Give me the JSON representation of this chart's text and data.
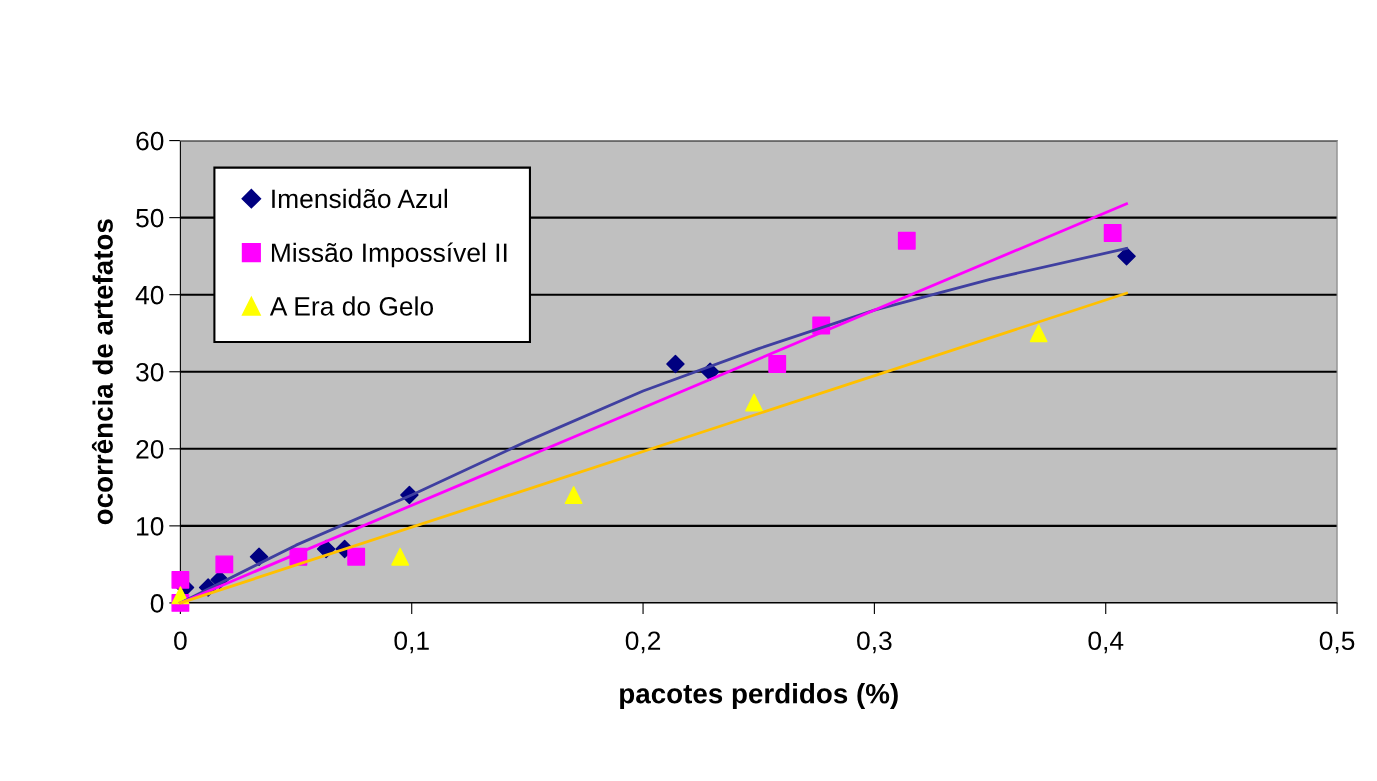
{
  "chart_data": {
    "type": "scatter",
    "xlabel": "pacotes perdidos (%)",
    "ylabel": "ocorrência de artefatos",
    "xlim": [
      0,
      0.5
    ],
    "xticks": [
      {
        "value": 0,
        "label": "0"
      },
      {
        "value": 0.1,
        "label": "0,1"
      },
      {
        "value": 0.2,
        "label": "0,2"
      },
      {
        "value": 0.3,
        "label": "0,3"
      },
      {
        "value": 0.4,
        "label": "0,4"
      },
      {
        "value": 0.5,
        "label": "0,5"
      }
    ],
    "ylim": [
      0,
      60
    ],
    "yticks": [
      0,
      10,
      20,
      30,
      40,
      50,
      60
    ],
    "grid": "y",
    "legend": "top left",
    "series": [
      {
        "name": "Imensidão Azul",
        "color": "#000080",
        "marker": "diamond",
        "x": [
          0.002,
          0.012,
          0.017,
          0.034,
          0.063,
          0.071,
          0.099,
          0.214,
          0.229,
          0.409
        ],
        "values": [
          2,
          2,
          3,
          6,
          7,
          7,
          14,
          31,
          30,
          45
        ]
      },
      {
        "name": "Missão Impossível II",
        "color": "#ff00ff",
        "marker": "square",
        "x": [
          0,
          0,
          0.019,
          0.051,
          0.076,
          0.258,
          0.277,
          0.314,
          0.403
        ],
        "values": [
          3,
          0,
          5,
          6,
          6,
          31,
          36,
          47,
          48
        ]
      },
      {
        "name": "A Era do Gelo",
        "color": "#ffff00",
        "marker": "triangle",
        "x": [
          0,
          0.095,
          0.17,
          0.248,
          0.371
        ],
        "values": [
          1,
          6,
          14,
          26,
          35
        ]
      },
      {
        "type": "line",
        "color": "#3f3fa0",
        "marker": "none",
        "x": [
          0,
          0.05,
          0.1,
          0.15,
          0.2,
          0.25,
          0.3,
          0.35,
          0.409
        ],
        "values": [
          0,
          7.5,
          14,
          21,
          27.5,
          33,
          38,
          42,
          46
        ]
      },
      {
        "type": "line",
        "color": "#ff00ff",
        "marker": "none",
        "x": [
          0,
          0.409
        ],
        "values": [
          0,
          51.8
        ]
      },
      {
        "type": "line",
        "color": "#ffc000",
        "marker": "none",
        "x": [
          0,
          0.409
        ],
        "values": [
          0,
          40.2
        ]
      }
    ]
  }
}
